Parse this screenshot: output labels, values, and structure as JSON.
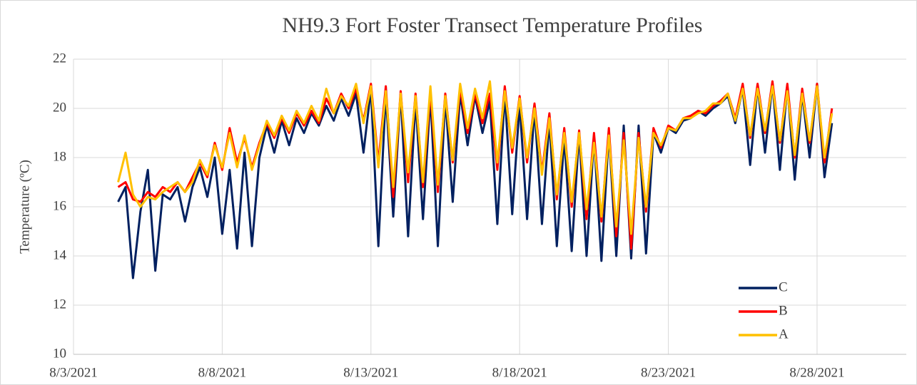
{
  "chart_data": {
    "type": "line",
    "title": "NH9.3 Fort Foster Transect Temperature Profiles",
    "y_label": "Temperature (ºC)",
    "x": [
      44412.5,
      44412.75,
      44413,
      44413.25,
      44413.5,
      44413.75,
      44414,
      44414.25,
      44414.5,
      44414.75,
      44415,
      44415.25,
      44415.5,
      44415.75,
      44416,
      44416.25,
      44416.5,
      44416.75,
      44417,
      44417.25,
      44417.5,
      44417.75,
      44418,
      44418.25,
      44418.5,
      44418.75,
      44419,
      44419.25,
      44419.5,
      44419.75,
      44420,
      44420.25,
      44420.5,
      44420.75,
      44421,
      44421.25,
      44421.5,
      44421.75,
      44422,
      44422.25,
      44422.5,
      44422.75,
      44423,
      44423.25,
      44423.5,
      44423.75,
      44424,
      44424.25,
      44424.5,
      44424.75,
      44425,
      44425.25,
      44425.5,
      44425.75,
      44426,
      44426.25,
      44426.5,
      44426.75,
      44427,
      44427.25,
      44427.5,
      44427.75,
      44428,
      44428.25,
      44428.5,
      44428.75,
      44429,
      44429.25,
      44429.5,
      44429.75,
      44430,
      44430.25,
      44430.5,
      44430.75,
      44431,
      44431.25,
      44431.5,
      44431.75,
      44432,
      44432.25,
      44432.5,
      44432.75,
      44433,
      44433.25,
      44433.5,
      44433.75,
      44434,
      44434.25,
      44434.5,
      44434.75,
      44435,
      44435.25,
      44435.5,
      44435.75,
      44436,
      44436.25,
      44436.5
    ],
    "series": [
      {
        "name": "C",
        "color": "#002060",
        "values": [
          16.2,
          16.8,
          13.1,
          15.8,
          17.5,
          13.4,
          16.5,
          16.3,
          16.8,
          15.4,
          16.8,
          17.6,
          16.4,
          18.0,
          14.9,
          17.5,
          14.3,
          18.2,
          14.4,
          18.0,
          19.3,
          18.2,
          19.5,
          18.5,
          19.6,
          19.0,
          19.8,
          19.3,
          20.1,
          19.5,
          20.4,
          19.7,
          20.6,
          18.2,
          20.8,
          14.4,
          20.6,
          15.6,
          20.6,
          14.8,
          20.3,
          15.5,
          20.5,
          14.4,
          20.4,
          16.2,
          20.6,
          18.5,
          20.5,
          19.0,
          20.3,
          15.3,
          20.6,
          15.7,
          20.2,
          15.5,
          20.0,
          15.3,
          19.5,
          14.4,
          18.8,
          14.2,
          19.0,
          14.0,
          18.8,
          13.8,
          19.0,
          14.0,
          19.3,
          13.9,
          19.3,
          14.1,
          19.0,
          18.2,
          19.2,
          19.0,
          19.5,
          19.6,
          19.9,
          19.7,
          20.0,
          20.2,
          20.5,
          19.4,
          20.8,
          17.7,
          20.9,
          18.2,
          21.0,
          17.5,
          20.9,
          17.1,
          20.6,
          18.0,
          21.0,
          17.2,
          19.4
        ]
      },
      {
        "name": "B",
        "color": "#ff0000",
        "values": [
          16.8,
          17.0,
          16.3,
          16.2,
          16.6,
          16.4,
          16.8,
          16.6,
          17.0,
          16.6,
          17.2,
          17.8,
          17.2,
          18.6,
          17.5,
          19.2,
          17.8,
          18.8,
          17.6,
          18.6,
          19.4,
          18.8,
          19.6,
          19.0,
          19.8,
          19.3,
          19.9,
          19.4,
          20.4,
          19.8,
          20.6,
          20.0,
          20.8,
          19.5,
          21.0,
          17.8,
          20.9,
          16.4,
          20.7,
          17.0,
          20.6,
          16.8,
          20.7,
          16.6,
          20.6,
          17.8,
          20.8,
          19.0,
          20.6,
          19.4,
          20.6,
          17.5,
          20.9,
          18.2,
          20.5,
          17.8,
          20.2,
          17.4,
          19.8,
          16.3,
          19.2,
          16.0,
          19.1,
          15.5,
          19.0,
          15.4,
          19.2,
          14.8,
          19.0,
          14.3,
          19.0,
          15.8,
          19.2,
          18.4,
          19.3,
          19.1,
          19.6,
          19.7,
          19.9,
          19.8,
          20.1,
          20.3,
          20.6,
          19.6,
          21.0,
          18.8,
          21.0,
          19.0,
          21.1,
          18.6,
          21.0,
          18.0,
          20.8,
          18.6,
          21.0,
          17.8,
          20.0
        ]
      },
      {
        "name": "A",
        "color": "#ffc000",
        "values": [
          17.0,
          18.2,
          16.5,
          16.0,
          16.4,
          16.3,
          16.6,
          16.8,
          17.0,
          16.6,
          17.0,
          17.9,
          17.3,
          18.5,
          17.6,
          19.0,
          17.6,
          18.9,
          17.5,
          18.5,
          19.5,
          18.9,
          19.7,
          19.1,
          19.9,
          19.4,
          20.1,
          19.5,
          20.8,
          19.8,
          20.5,
          20.1,
          21.0,
          19.4,
          20.9,
          17.6,
          20.7,
          16.8,
          20.6,
          17.4,
          20.5,
          17.0,
          20.9,
          16.9,
          20.5,
          17.9,
          21.0,
          19.2,
          20.8,
          19.6,
          21.1,
          17.8,
          20.7,
          18.4,
          20.4,
          18.0,
          20.0,
          17.3,
          19.6,
          16.5,
          19.0,
          16.2,
          19.0,
          15.9,
          18.6,
          15.6,
          18.9,
          15.2,
          18.7,
          14.9,
          18.8,
          16.0,
          19.0,
          18.5,
          19.2,
          19.1,
          19.6,
          19.6,
          19.8,
          19.9,
          20.2,
          20.2,
          20.6,
          19.5,
          20.8,
          18.9,
          20.8,
          19.1,
          20.9,
          18.7,
          20.7,
          18.1,
          20.6,
          18.7,
          20.9,
          18.0,
          19.8
        ]
      }
    ],
    "xlim": [
      44411,
      44439
    ],
    "xticks": [
      {
        "value": 44411,
        "label": "8/3/2021"
      },
      {
        "value": 44416,
        "label": "8/8/2021"
      },
      {
        "value": 44421,
        "label": "8/13/2021"
      },
      {
        "value": 44426,
        "label": "8/18/2021"
      },
      {
        "value": 44431,
        "label": "8/23/2021"
      },
      {
        "value": 44436,
        "label": "8/28/2021"
      }
    ],
    "ylim": [
      10,
      22
    ],
    "yticks": [
      10,
      12,
      14,
      16,
      18,
      20,
      22
    ],
    "grid": true,
    "legend": "lower right"
  }
}
